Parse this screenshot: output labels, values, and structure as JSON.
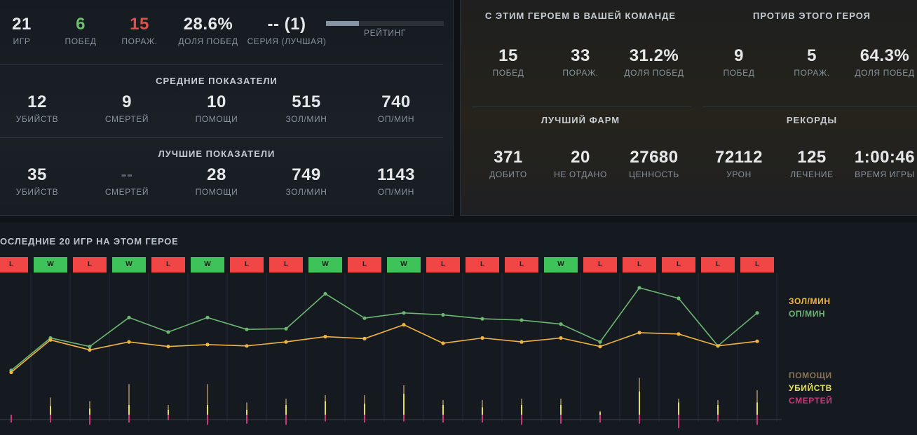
{
  "summary": {
    "games": {
      "value": "21",
      "label": "ИГР"
    },
    "wins": {
      "value": "6",
      "label": "ПОБЕД"
    },
    "losses": {
      "value": "15",
      "label": "ПОРАЖ."
    },
    "winrate": {
      "value": "28.6%",
      "label": "ДОЛЯ ПОБЕД"
    },
    "streak": {
      "value": "-- (1)",
      "label": "СЕРИЯ (ЛУЧШАЯ)"
    },
    "rating": {
      "label": "РЕЙТИНГ",
      "fill_fraction": 0.28
    }
  },
  "average": {
    "title": "СРЕДНИЕ ПОКАЗАТЕЛИ",
    "items": [
      {
        "value": "12",
        "label": "УБИЙСТВ"
      },
      {
        "value": "9",
        "label": "СМЕРТЕЙ"
      },
      {
        "value": "10",
        "label": "ПОМОЩИ"
      },
      {
        "value": "515",
        "label": "ЗОЛ/МИН"
      },
      {
        "value": "740",
        "label": "ОП/МИН"
      }
    ]
  },
  "best": {
    "title": "ЛУЧШИЕ ПОКАЗАТЕЛИ",
    "items": [
      {
        "value": "35",
        "label": "УБИЙСТВ"
      },
      {
        "value": "--",
        "label": "СМЕРТЕЙ"
      },
      {
        "value": "28",
        "label": "ПОМОЩИ"
      },
      {
        "value": "749",
        "label": "ЗОЛ/МИН"
      },
      {
        "value": "1143",
        "label": "ОП/МИН"
      }
    ]
  },
  "with_hero": {
    "title": "С ЭТИМ ГЕРОЕМ В ВАШЕЙ КОМАНДЕ",
    "items": [
      {
        "value": "15",
        "label": "ПОБЕД"
      },
      {
        "value": "33",
        "label": "ПОРАЖ."
      },
      {
        "value": "31.2%",
        "label": "ДОЛЯ ПОБЕД"
      }
    ]
  },
  "against_hero": {
    "title": "ПРОТИВ ЭТОГО ГЕРОЯ",
    "items": [
      {
        "value": "9",
        "label": "ПОБЕД"
      },
      {
        "value": "5",
        "label": "ПОРАЖ."
      },
      {
        "value": "64.3%",
        "label": "ДОЛЯ ПОБЕД"
      }
    ]
  },
  "best_farm": {
    "title": "ЛУЧШИЙ ФАРМ",
    "items": [
      {
        "value": "371",
        "label": "ДОБИТО"
      },
      {
        "value": "20",
        "label": "НЕ ОТДАНО"
      },
      {
        "value": "27680",
        "label": "ЦЕННОСТЬ"
      }
    ]
  },
  "records": {
    "title": "РЕКОРДЫ",
    "items": [
      {
        "value": "72112",
        "label": "УРОН"
      },
      {
        "value": "125",
        "label": "ЛЕЧЕНИЕ"
      },
      {
        "value": "1:00:46",
        "label": "ВРЕМЯ ИГРЫ"
      }
    ]
  },
  "recent": {
    "title": "ОСЛЕДНИЕ 20 ИГР НА ЭТОМ ГЕРОЕ",
    "results": [
      "L",
      "W",
      "L",
      "W",
      "L",
      "W",
      "L",
      "L",
      "W",
      "L",
      "W",
      "L",
      "L",
      "L",
      "W",
      "L",
      "L",
      "L",
      "L",
      "L"
    ]
  },
  "legend": {
    "gpm": "ЗОЛ/МИН",
    "xpm": "ОП/МИН",
    "assists": "ПОМОЩИ",
    "kills": "УБИЙСТВ",
    "deaths": "СМЕРТЕЙ"
  },
  "colors": {
    "gpm": "#f2b440",
    "xpm": "#6db673",
    "assists": "#8a7355",
    "kills": "#e5e05a",
    "deaths": "#c83a7a",
    "win": "#3ec25a",
    "loss": "#f14646"
  },
  "chart_data": {
    "type": "line",
    "x": [
      1,
      2,
      3,
      4,
      5,
      6,
      7,
      8,
      9,
      10,
      11,
      12,
      13,
      14,
      15,
      16,
      17,
      18,
      19,
      20
    ],
    "series": [
      {
        "name": "ЗОЛ/МИН",
        "values": [
          295,
          540,
          465,
          525,
          490,
          505,
          495,
          525,
          565,
          550,
          655,
          515,
          555,
          525,
          555,
          490,
          595,
          585,
          495,
          530
        ]
      },
      {
        "name": "ОП/МИН",
        "values": [
          310,
          555,
          490,
          710,
          600,
          710,
          620,
          625,
          890,
          705,
          745,
          730,
          700,
          690,
          660,
          525,
          935,
          855,
          495,
          745
        ]
      },
      {
        "name": "ПОМОЩИ",
        "values": [
          0,
          14,
          11,
          25,
          8,
          25,
          10,
          13,
          16,
          16,
          24,
          12,
          12,
          13,
          13,
          3,
          30,
          13,
          12,
          20
        ]
      },
      {
        "name": "УБИЙСТВ",
        "values": [
          0,
          7,
          5,
          8,
          4,
          8,
          4,
          8,
          11,
          9,
          17,
          8,
          6,
          8,
          8,
          2,
          19,
          10,
          8,
          10
        ]
      },
      {
        "name": "СМЕРТЕЙ",
        "values": [
          7,
          7,
          9,
          7,
          5,
          9,
          8,
          9,
          6,
          7,
          6,
          7,
          7,
          9,
          8,
          7,
          8,
          12,
          6,
          9
        ]
      }
    ]
  }
}
